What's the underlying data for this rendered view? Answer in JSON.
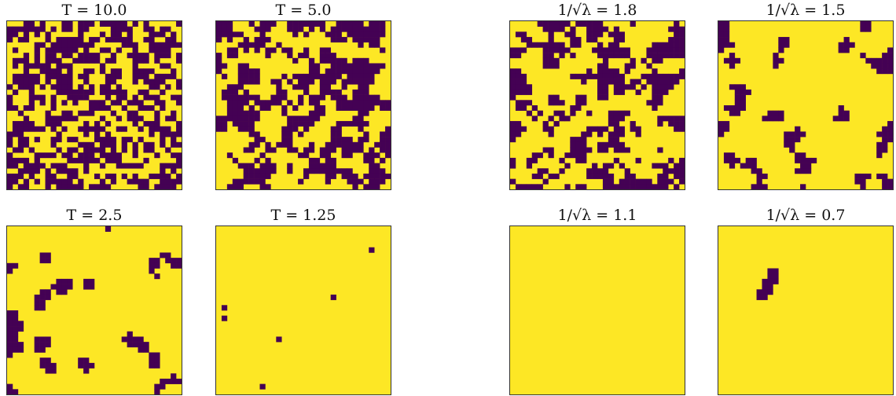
{
  "colors": {
    "up": "#fde725",
    "down": "#440154",
    "frame": "#333333"
  },
  "chart_data": [
    {
      "type": "heatmap",
      "title": "T = 10.0",
      "grid": 32,
      "seed": 11,
      "p_down": 0.5,
      "cluster": 0,
      "extra": []
    },
    {
      "type": "heatmap",
      "title": "T = 5.0",
      "grid": 32,
      "seed": 23,
      "p_down": 0.48,
      "cluster": 1,
      "extra": []
    },
    {
      "type": "heatmap",
      "title": "1/√λ = 1.8",
      "grid": 32,
      "seed": 37,
      "p_down": 0.42,
      "cluster": 1,
      "extra": []
    },
    {
      "type": "heatmap",
      "title": "1/√λ = 1.5",
      "grid": 32,
      "seed": 41,
      "p_down": 0.3,
      "cluster": 2,
      "extra": []
    },
    {
      "type": "heatmap",
      "title": "T = 2.5",
      "grid": 32,
      "seed": 53,
      "p_down": 0.33,
      "cluster": 4,
      "extra": []
    },
    {
      "type": "heatmap",
      "title": "T = 1.25",
      "grid": 32,
      "seed": 0,
      "p_down": 0,
      "cluster": 0,
      "extra": [
        [
          28,
          4
        ],
        [
          21,
          13
        ],
        [
          1,
          15
        ],
        [
          1,
          17
        ],
        [
          11,
          21
        ],
        [
          8,
          30
        ]
      ]
    },
    {
      "type": "heatmap",
      "title": "1/√λ = 1.1",
      "grid": 32,
      "seed": 67,
      "p_down": 0.17,
      "cluster": 4,
      "extra": []
    },
    {
      "type": "heatmap",
      "title": "1/√λ = 0.7",
      "grid": 32,
      "seed": 0,
      "p_down": 0,
      "cluster": 0,
      "extra": [
        [
          9,
          8
        ],
        [
          10,
          8
        ],
        [
          9,
          9
        ],
        [
          10,
          9
        ],
        [
          8,
          10
        ],
        [
          9,
          10
        ],
        [
          10,
          10
        ],
        [
          8,
          11
        ],
        [
          9,
          11
        ],
        [
          7,
          12
        ],
        [
          8,
          12
        ],
        [
          9,
          12
        ],
        [
          7,
          13
        ],
        [
          8,
          13
        ]
      ]
    }
  ]
}
